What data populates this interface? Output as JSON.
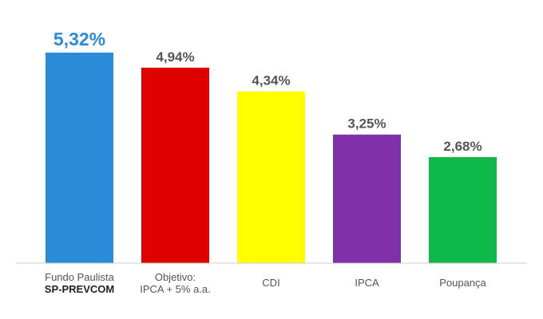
{
  "chart_data": {
    "type": "bar",
    "categories": [
      [
        "Fundo Paulista",
        "SP-PREVCOM"
      ],
      [
        "Objetivo:",
        "IPCA + 5% a.a."
      ],
      [
        "CDI"
      ],
      [
        "IPCA"
      ],
      [
        "Poupança"
      ]
    ],
    "values": [
      5.32,
      4.94,
      4.34,
      3.25,
      2.68
    ],
    "value_labels": [
      "5,32%",
      "4,94%",
      "4,34%",
      "3,25%",
      "2,68%"
    ],
    "colors": [
      "#2a8bd8",
      "#e00000",
      "#ffff00",
      "#8030a8",
      "#10b848"
    ],
    "label_colors": [
      "#2a8bd8",
      "#555555",
      "#555555",
      "#555555",
      "#555555"
    ],
    "title": "",
    "xlabel": "",
    "ylabel": "",
    "ylim": [
      0,
      5.32
    ],
    "grid": false,
    "legend": "none"
  }
}
